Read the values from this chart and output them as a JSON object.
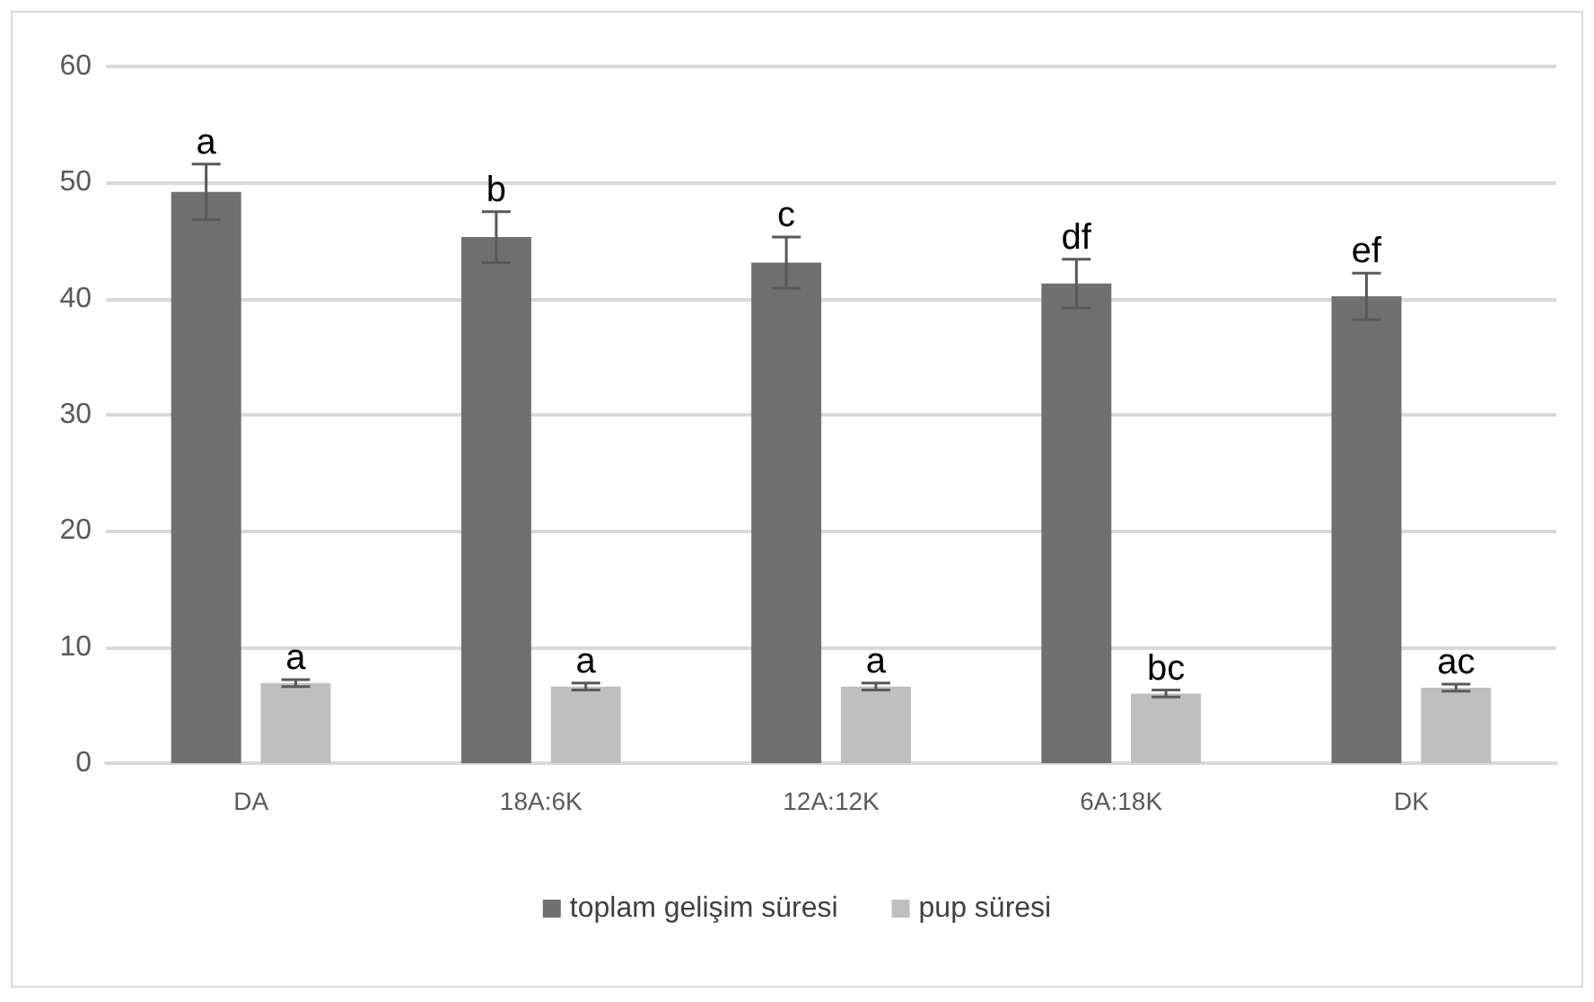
{
  "chart_data": {
    "type": "bar",
    "categories": [
      "DA",
      "18A:6K",
      "12A:12K",
      "6A:18K",
      "DK"
    ],
    "series": [
      {
        "name": "toplam gelişim süresi",
        "color": "#707070",
        "values": [
          49.2,
          45.3,
          43.1,
          41.3,
          40.2
        ],
        "errors": [
          2.4,
          2.2,
          2.2,
          2.1,
          2.0
        ],
        "value_labels": [
          "a",
          "b",
          "c",
          "df",
          "ef"
        ]
      },
      {
        "name": "pup süresi",
        "color": "#bfbfbf",
        "values": [
          6.9,
          6.6,
          6.6,
          6.0,
          6.5
        ],
        "errors": [
          0.3,
          0.3,
          0.3,
          0.3,
          0.3
        ],
        "value_labels": [
          "a",
          "a",
          "a",
          "bc",
          "ac"
        ]
      }
    ],
    "ylim": [
      0,
      60
    ],
    "yticks": [
      0,
      10,
      20,
      30,
      40,
      50,
      60
    ],
    "grid": "y",
    "legend": "bottom"
  }
}
